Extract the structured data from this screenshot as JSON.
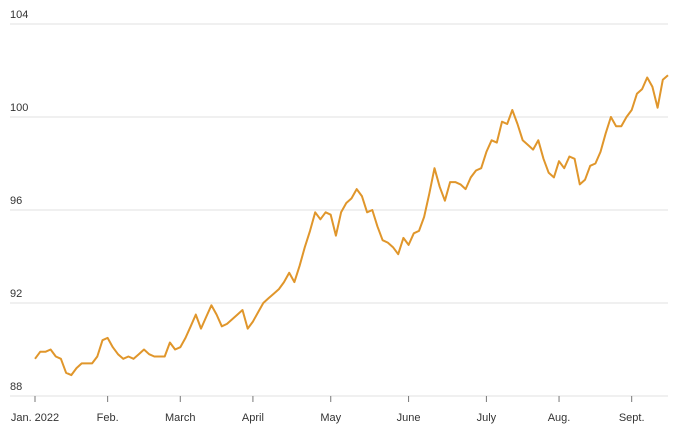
{
  "chart_data": {
    "type": "line",
    "categories": [
      "Jan. 2022",
      null,
      null,
      null,
      null,
      null,
      null,
      null,
      null,
      null,
      null,
      null,
      null,
      null,
      "Feb.",
      null,
      null,
      null,
      null,
      null,
      null,
      null,
      null,
      null,
      null,
      null,
      null,
      null,
      "March",
      null,
      null,
      null,
      null,
      null,
      null,
      null,
      null,
      null,
      null,
      null,
      null,
      null,
      "April",
      null,
      null,
      null,
      null,
      null,
      null,
      null,
      null,
      null,
      null,
      null,
      null,
      null,
      null,
      "May",
      null,
      null,
      null,
      null,
      null,
      null,
      null,
      null,
      null,
      null,
      null,
      null,
      null,
      null,
      "June",
      null,
      null,
      null,
      null,
      null,
      null,
      null,
      null,
      null,
      null,
      null,
      null,
      null,
      null,
      "July",
      null,
      null,
      null,
      null,
      null,
      null,
      null,
      null,
      null,
      null,
      null,
      null,
      null,
      "Aug.",
      null,
      null,
      null,
      null,
      null,
      null,
      null,
      null,
      null,
      null,
      null,
      null,
      null,
      "Sept.",
      null,
      null,
      null,
      null,
      null,
      null,
      null
    ],
    "values": [
      89.6,
      89.9,
      89.9,
      90.0,
      89.7,
      89.6,
      89.0,
      88.9,
      89.2,
      89.4,
      89.4,
      89.4,
      89.7,
      90.4,
      90.5,
      90.1,
      89.8,
      89.6,
      89.7,
      89.6,
      89.8,
      90.0,
      89.8,
      89.7,
      89.7,
      89.7,
      90.3,
      90.0,
      90.1,
      90.5,
      91.0,
      91.5,
      90.9,
      91.4,
      91.9,
      91.5,
      91.0,
      91.1,
      91.3,
      91.5,
      91.7,
      90.9,
      91.2,
      91.6,
      92.0,
      92.2,
      92.4,
      92.6,
      92.9,
      93.3,
      92.9,
      93.6,
      94.4,
      95.1,
      95.9,
      95.6,
      95.9,
      95.8,
      94.9,
      95.9,
      96.3,
      96.5,
      96.9,
      96.6,
      95.9,
      96.0,
      95.3,
      94.7,
      94.6,
      94.4,
      94.1,
      94.8,
      94.5,
      95.0,
      95.1,
      95.7,
      96.7,
      97.8,
      97.0,
      96.4,
      97.2,
      97.2,
      97.1,
      96.9,
      97.4,
      97.7,
      97.8,
      98.5,
      99.0,
      98.9,
      99.8,
      99.7,
      100.3,
      99.7,
      99.0,
      98.8,
      98.6,
      99.0,
      98.2,
      97.6,
      97.4,
      98.1,
      97.8,
      98.3,
      98.2,
      97.1,
      97.3,
      97.9,
      98.0,
      98.5,
      99.3,
      100.0,
      99.6,
      99.6,
      100.0,
      100.3,
      101.0,
      101.2,
      101.7,
      101.3,
      100.4,
      101.6,
      101.8
    ],
    "color": "#e0962b",
    "ylim": [
      88,
      104
    ],
    "yticks": [
      88,
      92,
      96,
      100,
      104
    ],
    "grid": true
  }
}
